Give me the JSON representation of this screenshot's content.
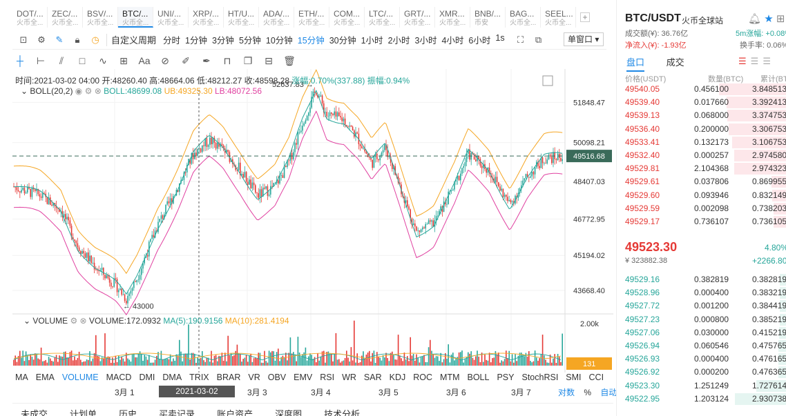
{
  "symbol_tabs": [
    {
      "t": "DOT/...",
      "s": "火币全..."
    },
    {
      "t": "ZEC/...",
      "s": "火币全..."
    },
    {
      "t": "BSV/...",
      "s": "火币全..."
    },
    {
      "t": "BTC/...",
      "s": "火币全..."
    },
    {
      "t": "UNI/...",
      "s": "火币全..."
    },
    {
      "t": "XRP/...",
      "s": "火币全..."
    },
    {
      "t": "HT/U...",
      "s": "火币全..."
    },
    {
      "t": "ADA/...",
      "s": "火币全..."
    },
    {
      "t": "ETH/...",
      "s": "火币全..."
    },
    {
      "t": "COM...",
      "s": "火币全..."
    },
    {
      "t": "LTC/...",
      "s": "火币全..."
    },
    {
      "t": "GRT/...",
      "s": "火币全..."
    },
    {
      "t": "XMR...",
      "s": "火币全..."
    },
    {
      "t": "BNB/...",
      "s": "币安"
    },
    {
      "t": "BAG...",
      "s": "火币全..."
    },
    {
      "t": "SEEL...",
      "s": "火币全..."
    }
  ],
  "toolbar": {
    "custom_period": "自定义周期",
    "periods": [
      "分时",
      "1分钟",
      "3分钟",
      "5分钟",
      "10分钟",
      "15分钟",
      "30分钟",
      "1小时",
      "2小时",
      "3小时",
      "4小时",
      "6小时",
      "1s"
    ],
    "selected_period": "15分钟",
    "window_mode": "单窗口"
  },
  "ohlc": {
    "time": "时间:2021-03-02 04:00",
    "open": "开:48260.40",
    "high": "高:48664.06",
    "low": "低:48212.27",
    "close": "收:48598.28",
    "change": "涨幅:0.70%(337.88)",
    "amplitude": "振幅:0.94%"
  },
  "boll": {
    "name": "BOLL(20,2)",
    "mid": "BOLL:48699.08",
    "ub": "UB:49325.30",
    "lb": "LB:48072.56"
  },
  "volume": {
    "name": "VOLUME",
    "value": "VOLUME:172.0932",
    "ma5": "MA(5):190.9156",
    "ma10": "MA(10):281.4194"
  },
  "price_axis": [
    "51848.47",
    "50098.21",
    "48407.03",
    "46772.95",
    "45194.02",
    "43668.40"
  ],
  "price_tag": "49516.68",
  "high_label": "52637.83 →",
  "low_label": "← 43000",
  "vol_axis": "2.00k",
  "vol_tag": "131",
  "indicators": [
    "MA",
    "EMA",
    "VOLUME",
    "MACD",
    "DMI",
    "DMA",
    "TRIX",
    "BRAR",
    "VR",
    "OBV",
    "EMV",
    "RSI",
    "WR",
    "SAR",
    "KDJ",
    "ROC",
    "MTM",
    "BOLL",
    "PSY",
    "StochRSI",
    "SMI",
    "CCI"
  ],
  "selected_indicator": "VOLUME",
  "dates": [
    "3月 1",
    "3月 3",
    "3月 4",
    "3月 5",
    "3月 6",
    "3月 7"
  ],
  "current_date": "2021-03-02 04:00:00",
  "scale": {
    "log": "对数",
    "pct": "%",
    "auto": "自动"
  },
  "bottom_tabs": [
    "未成交",
    "计划单",
    "历史",
    "买卖记录",
    "账户资产",
    "深度图",
    "技术分析"
  ],
  "right_panel": {
    "pair": "BTC/USDT",
    "exchange": "火币全球站",
    "turnover": "成交额(¥): 36.76亿",
    "net_inflow": "净流入(¥): -1.93亿",
    "rise_5m": "5m涨幅: +0.08%",
    "turnover_rate": "换手率: 0.06%",
    "tab_book": "盘口",
    "tab_trades": "成交",
    "col_price": "价格(USDT)",
    "col_qty": "数量(BTC)",
    "col_cum": "累计(BTC)",
    "asks": [
      [
        "49540.05",
        "0.456100",
        "3.848513"
      ],
      [
        "49539.40",
        "0.017660",
        "3.392413"
      ],
      [
        "49539.13",
        "0.068000",
        "3.374753"
      ],
      [
        "49536.40",
        "0.200000",
        "3.306753"
      ],
      [
        "49533.41",
        "0.132173",
        "3.106753"
      ],
      [
        "49532.40",
        "0.000257",
        "2.974580"
      ],
      [
        "49529.81",
        "2.104368",
        "2.974323"
      ],
      [
        "49529.61",
        "0.037806",
        "0.869955"
      ],
      [
        "49529.60",
        "0.093946",
        "0.832149"
      ],
      [
        "49529.59",
        "0.002098",
        "0.738203"
      ],
      [
        "49529.17",
        "0.736107",
        "0.736105"
      ]
    ],
    "last_price": "49523.30",
    "last_cny": "¥ 323882.38",
    "last_pct": "4.80%",
    "last_change": "+2266.80",
    "bids": [
      [
        "49529.16",
        "0.382819",
        "0.382819"
      ],
      [
        "49528.96",
        "0.000400",
        "0.383219"
      ],
      [
        "49527.72",
        "0.001200",
        "0.384419"
      ],
      [
        "49527.23",
        "0.000800",
        "0.385219"
      ],
      [
        "49527.06",
        "0.030000",
        "0.415219"
      ],
      [
        "49526.94",
        "0.060546",
        "0.475765"
      ],
      [
        "49526.93",
        "0.000400",
        "0.476165"
      ],
      [
        "49526.92",
        "0.000200",
        "0.476365"
      ],
      [
        "49523.30",
        "1.251249",
        "1.727614"
      ],
      [
        "49522.95",
        "1.203124",
        "2.930738"
      ]
    ]
  },
  "colors": {
    "up": "#26a69a",
    "down": "#e53935",
    "accent": "#1e88e5",
    "ub": "#f5a623",
    "lb": "#e040a0"
  }
}
